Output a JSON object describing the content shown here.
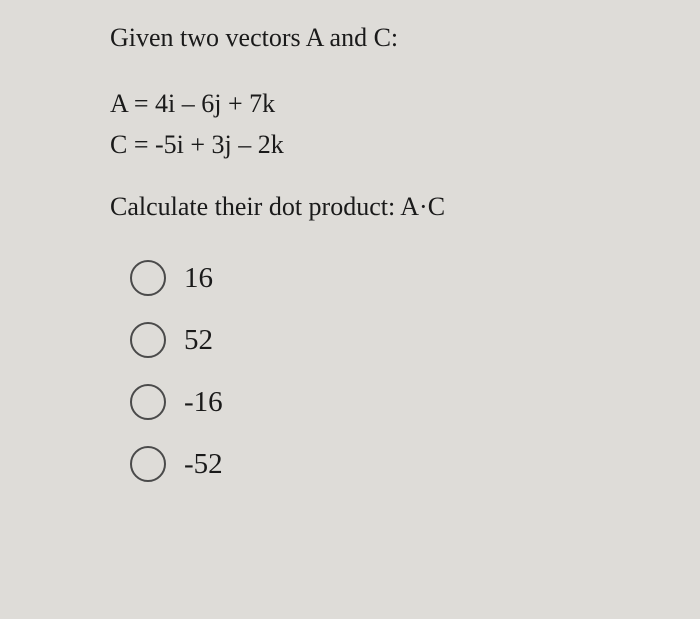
{
  "question": {
    "intro": "Given two vectors A and C:",
    "equation_a": "A = 4i – 6j + 7k",
    "equation_c": "C = -5i + 3j – 2k",
    "instruction": "Calculate their dot product: A·C"
  },
  "options": [
    {
      "label": "16"
    },
    {
      "label": "52"
    },
    {
      "label": "-16"
    },
    {
      "label": "-52"
    }
  ],
  "styling": {
    "background_color": "#dedcd8",
    "text_color": "#1a1a1a",
    "radio_border_color": "#4a4a4a",
    "font_family": "Times New Roman",
    "question_fontsize": 26,
    "option_fontsize": 29,
    "radio_size": 36
  }
}
